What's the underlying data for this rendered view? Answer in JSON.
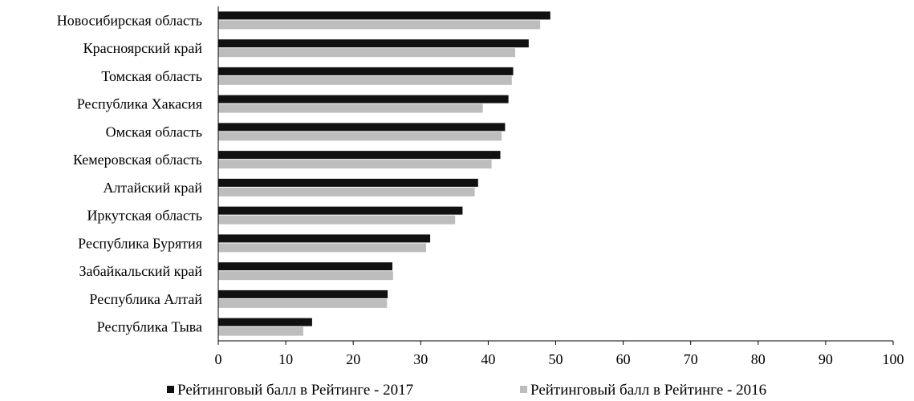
{
  "chart_data": {
    "type": "bar",
    "orientation": "horizontal",
    "categories": [
      "Новосибирская область",
      "Красноярский край",
      "Томская область",
      "Республика Хакасия",
      "Омская область",
      "Кемеровская область",
      "Алтайский край",
      "Иркутская область",
      "Республика Бурятия",
      "Забайкальский край",
      "Республика Алтай",
      "Республика Тыва"
    ],
    "series": [
      {
        "name": "Рейтинговый балл в Рейтинге - 2017",
        "color": "#111111",
        "values": [
          49.2,
          46.0,
          43.7,
          43.0,
          42.5,
          41.8,
          38.5,
          36.2,
          31.4,
          25.8,
          25.1,
          13.9
        ]
      },
      {
        "name": "Рейтинговый балл в Рейтинге - 2016",
        "color": "#bdbdbd",
        "values": [
          47.7,
          44.0,
          43.5,
          39.2,
          42.0,
          40.5,
          38.0,
          35.1,
          30.8,
          25.9,
          25.0,
          12.6
        ]
      }
    ],
    "xlim": [
      0,
      100
    ],
    "xticks": [
      "0",
      "10",
      "20",
      "30",
      "40",
      "50",
      "60",
      "70",
      "80",
      "90",
      "100"
    ],
    "legend_position": "bottom",
    "grid": false,
    "title": "",
    "xlabel": "",
    "ylabel": ""
  }
}
